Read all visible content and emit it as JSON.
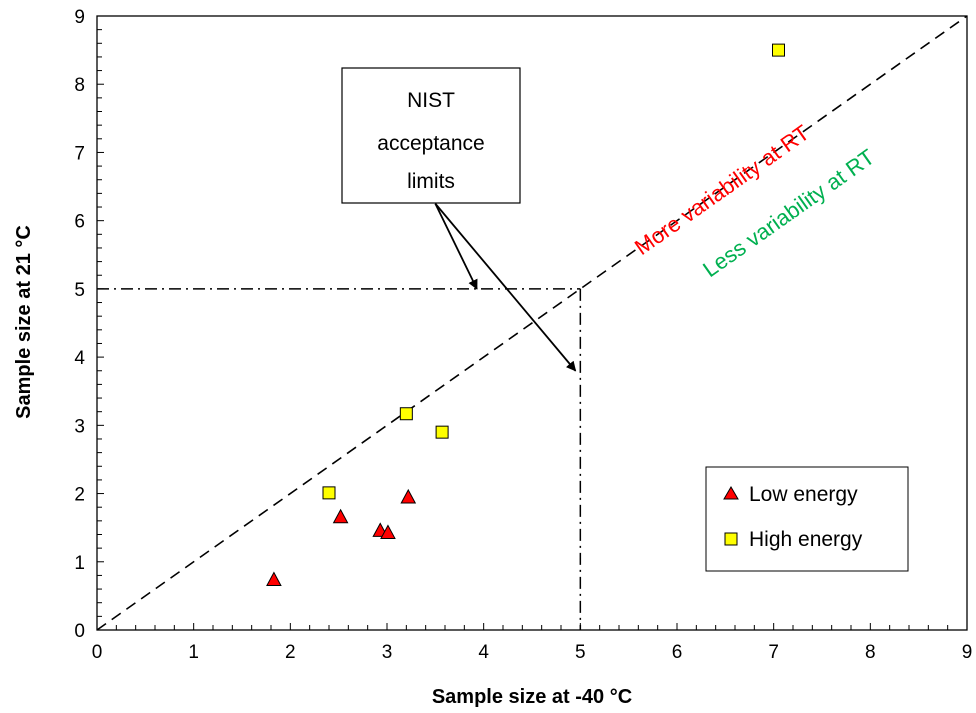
{
  "chart_data": {
    "type": "scatter",
    "title": "",
    "xlabel": "Sample size at -40 °C",
    "ylabel": "Sample size at 21 °C",
    "xlim": [
      0,
      9
    ],
    "ylim": [
      0,
      9
    ],
    "x_ticks": [
      "0",
      "1",
      "2",
      "3",
      "4",
      "5",
      "6",
      "7",
      "8",
      "9"
    ],
    "y_ticks": [
      "0",
      "1",
      "2",
      "3",
      "4",
      "5",
      "6",
      "7",
      "8",
      "9"
    ],
    "grid": false,
    "legend_position": "bottom-right",
    "series": [
      {
        "name": "Low energy",
        "marker": "triangle",
        "color": "#ff0000",
        "points": [
          [
            1.83,
            0.74
          ],
          [
            2.52,
            1.66
          ],
          [
            2.93,
            1.46
          ],
          [
            3.01,
            1.43
          ],
          [
            3.22,
            1.95
          ]
        ]
      },
      {
        "name": "High energy",
        "marker": "square",
        "color": "#ffff00",
        "points": [
          [
            2.4,
            2.01
          ],
          [
            3.2,
            3.17
          ],
          [
            3.57,
            2.9
          ],
          [
            7.05,
            8.5
          ]
        ]
      }
    ],
    "reference_lines": {
      "diagonal": {
        "style": "dashed",
        "from": [
          0,
          0
        ],
        "to": [
          9,
          9
        ]
      },
      "limits": {
        "style": "dash-dot",
        "x_limit": 5,
        "y_limit": 5
      }
    },
    "annotations": {
      "callout_lines": [
        "NIST",
        "acceptance",
        "limits"
      ],
      "arrow_from": [
        3.5,
        6.25
      ],
      "arrow_targets": [
        [
          3.93,
          5.0
        ],
        [
          4.95,
          3.8
        ]
      ],
      "more_label": "More variability at RT",
      "more_color": "#ff0000",
      "less_label": "Less variability at RT",
      "less_color": "#00b050"
    }
  }
}
